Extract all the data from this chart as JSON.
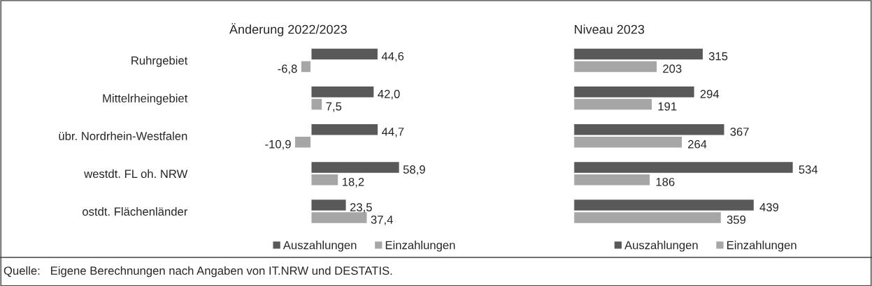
{
  "chart_data": [
    {
      "type": "bar",
      "orientation": "horizontal",
      "title": "Änderung 2022/2023",
      "categories": [
        "Ruhrgebiet",
        "Mittelrheingebiet",
        "übr. Nordrhein-Westfalen",
        "westdt. FL oh. NRW",
        "ostdt. Flächenländer"
      ],
      "legend": "bottom",
      "series": [
        {
          "name": "Auszahlungen",
          "color": "#595959",
          "values": [
            44.6,
            42.0,
            44.7,
            58.9,
            23.5
          ],
          "value_labels": [
            "44,6",
            "42,0",
            "44,7",
            "58,9",
            "23,5"
          ]
        },
        {
          "name": "Einzahlungen",
          "color": "#a6a6a6",
          "values": [
            -6.8,
            7.5,
            -10.9,
            18.2,
            37.4
          ],
          "value_labels": [
            "-6,8",
            "7,5",
            "-10,9",
            "18,2",
            "37,4"
          ]
        }
      ]
    },
    {
      "type": "bar",
      "orientation": "horizontal",
      "title": "Niveau 2023",
      "categories": [
        null,
        null,
        null,
        null,
        null
      ],
      "legend": "bottom",
      "series": [
        {
          "name": "Auszahlungen",
          "color": "#595959",
          "values": [
            315,
            294,
            367,
            534,
            439
          ],
          "value_labels": [
            "315",
            "294",
            "367",
            "534",
            "439"
          ]
        },
        {
          "name": "Einzahlungen",
          "color": "#a6a6a6",
          "values": [
            203,
            191,
            264,
            186,
            359
          ],
          "value_labels": [
            "203",
            "191",
            "264",
            "186",
            "359"
          ]
        }
      ],
      "annotations": [
        "Quelle:   Eigene Berechnungen nach Angaben von IT.NRW und DESTATIS."
      ]
    }
  ]
}
